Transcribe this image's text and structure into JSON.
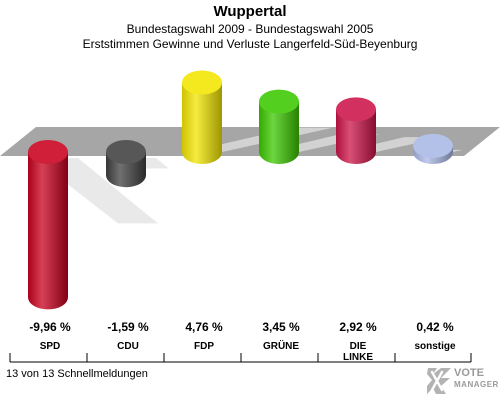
{
  "header": {
    "title": "Wuppertal",
    "subtitle1": "Bundestagswahl 2009 - Bundestagswahl 2005",
    "subtitle2": "Erststimmen Gewinne und Verluste Langerfeld-Süd-Beyenburg"
  },
  "footer": {
    "status": "13 von 13 Schnellmeldungen"
  },
  "logo": {
    "line1": "VOTE",
    "line2": "MANAGER"
  },
  "chart_data": {
    "type": "bar",
    "title": "Wuppertal",
    "subtitle": "Erststimmen Gewinne und Verluste Langerfeld-Süd-Beyenburg",
    "categories": [
      "SPD",
      "CDU",
      "FDP",
      "GRÜNE",
      "DIE LINKE",
      "sonstige"
    ],
    "values": [
      -9.96,
      -1.59,
      4.76,
      3.45,
      2.92,
      0.42
    ],
    "value_labels": [
      "-9,96 %",
      "-1,59 %",
      "4,76 %",
      "3,45 %",
      "2,92 %",
      "0,42 %"
    ],
    "colors": [
      "#c8001e",
      "#404040",
      "#f2e600",
      "#3cc800",
      "#cc1448",
      "#a9b8e6"
    ],
    "unit": "%",
    "grid": false,
    "legend": "none"
  }
}
